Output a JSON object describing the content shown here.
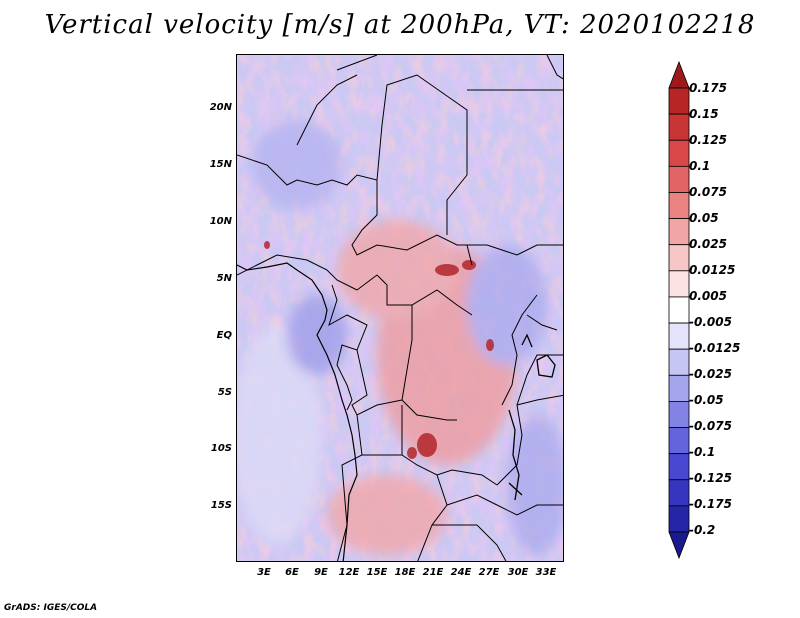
{
  "title": "Vertical velocity [m/s] at 200hPa, VT: 2020102218",
  "footer": "GrADS: IGES/COLA",
  "lat_labels": [
    "20N",
    "15N",
    "10N",
    "5N",
    "EQ",
    "5S",
    "10S",
    "15S"
  ],
  "lon_labels": [
    "3E",
    "6E",
    "9E",
    "12E",
    "15E",
    "18E",
    "21E",
    "24E",
    "27E",
    "30E",
    "33E"
  ],
  "colorbar": {
    "labels": [
      "0.175",
      "0.15",
      "0.125",
      "0.1",
      "0.075",
      "0.05",
      "0.025",
      "0.0125",
      "0.005",
      "-0.005",
      "-0.0125",
      "-0.025",
      "-0.05",
      "-0.075",
      "-0.1",
      "-0.125",
      "-0.175",
      "-0.2"
    ],
    "colors": [
      "#9e1a1a",
      "#b72525",
      "#c93535",
      "#d84848",
      "#e36464",
      "#eb8383",
      "#f2a5a5",
      "#f7c6c6",
      "#fbe3e3",
      "#ffffff",
      "#e3e3fb",
      "#c6c6f5",
      "#a5a5ee",
      "#8383e6",
      "#6464dc",
      "#4848d0",
      "#3535c0",
      "#2525a8",
      "#1a1a8e"
    ]
  }
}
